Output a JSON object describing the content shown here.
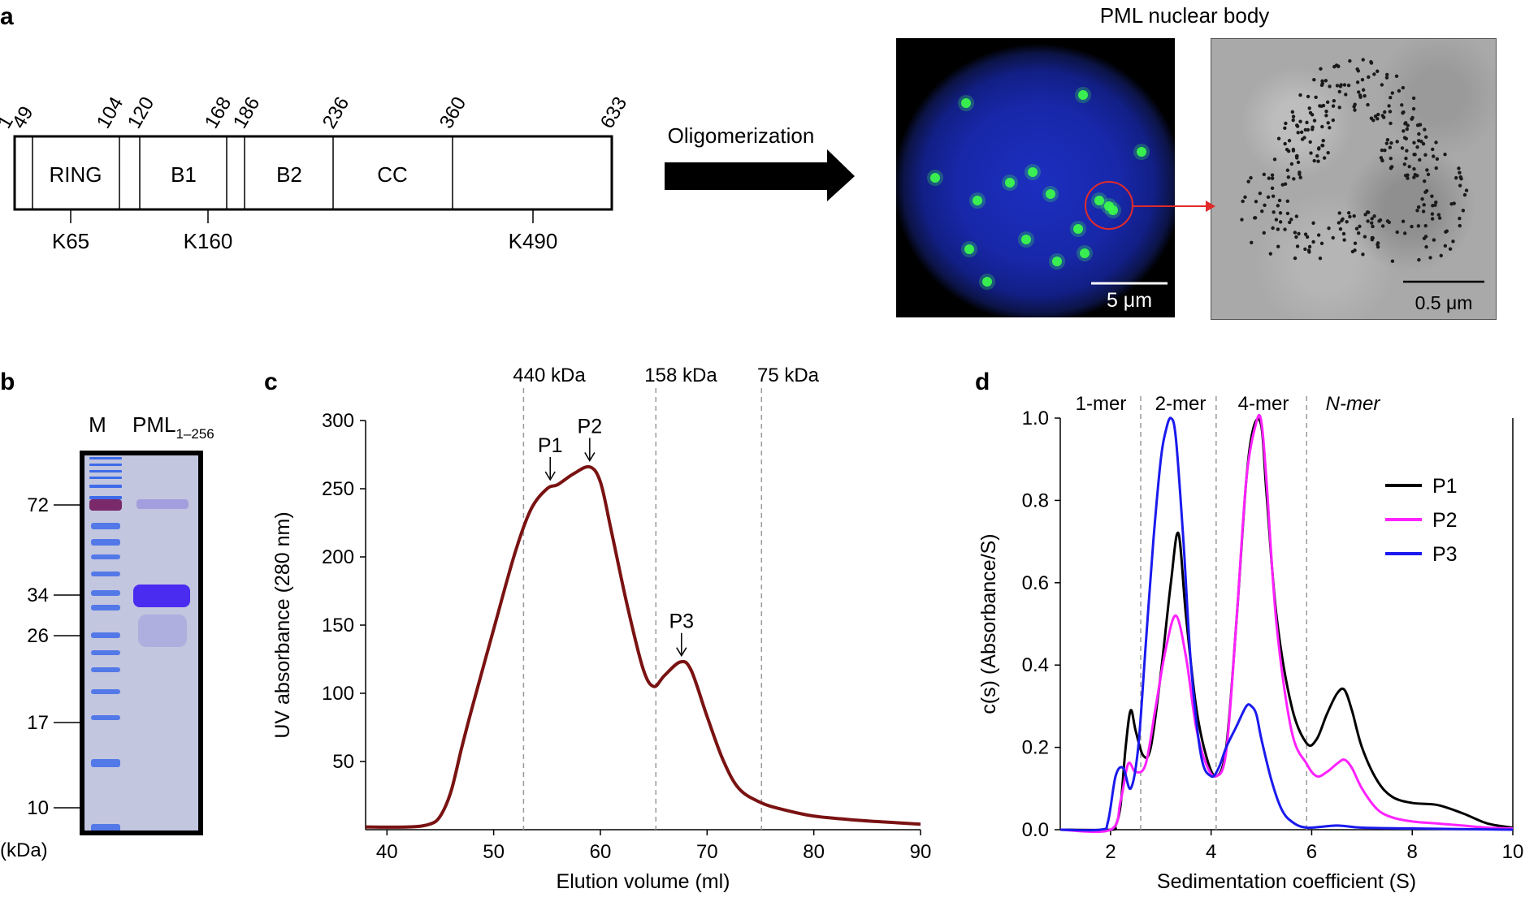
{
  "panel_a": {
    "letter": "a",
    "domain_positions": [
      "1",
      "49",
      "104",
      "120",
      "168",
      "186",
      "236",
      "360",
      "633"
    ],
    "domain_names": [
      "RING",
      "B1",
      "B2",
      "CC"
    ],
    "lysines": [
      "K65",
      "K160",
      "K490"
    ],
    "arrow_label": "Oligomerization",
    "images_title": "PML nuclear body",
    "scalebar_fluor": "5 μm",
    "scalebar_em": "0.5 μm",
    "colors": {
      "fluor_bg": "#1828aa",
      "foci": "#3cff4a",
      "circle": "#e22a2a"
    }
  },
  "panel_b": {
    "letter": "b",
    "lane_m": "M",
    "lane_pml_main": "PML",
    "lane_pml_sub": "1–256",
    "mw_markers": [
      "72",
      "34",
      "26",
      "17",
      "10"
    ],
    "unit": "(kDa)",
    "colors": {
      "gel": "#c2c6df",
      "band": "#4a2cf0",
      "marker": "#3f6bea",
      "marker_72": "#7a2a6a"
    }
  },
  "panel_c": {
    "letter": "c",
    "mw_labels": [
      "440 kDa",
      "158  kDa",
      "75  kDa"
    ],
    "peak_labels": [
      "P1",
      "P2",
      "P3"
    ]
  },
  "panel_d": {
    "letter": "d",
    "region_labels": [
      "1-mer",
      "2-mer",
      "4-mer",
      "N-mer"
    ]
  },
  "chart_data": [
    {
      "type": "line",
      "title": "",
      "xlabel": "Elution volume (ml)",
      "ylabel": "UV absorbance (280 nm)",
      "xlim": [
        38,
        90
      ],
      "ylim": [
        0,
        300
      ],
      "xticks": [
        40,
        50,
        60,
        70,
        80,
        90
      ],
      "yticks": [
        50,
        100,
        150,
        200,
        250,
        300
      ],
      "vlines": [
        52.8,
        65.2,
        75.1
      ],
      "grid": false,
      "series": [
        {
          "color": "#7a1212",
          "x": [
            38,
            42,
            44,
            45,
            46,
            47,
            48,
            50,
            52,
            53.5,
            55,
            56,
            57.5,
            59,
            60,
            61,
            62.5,
            64,
            65,
            66,
            67.5,
            68.5,
            70,
            71.5,
            73,
            75,
            77,
            80,
            84,
            88,
            90
          ],
          "y": [
            2,
            2,
            4,
            10,
            28,
            60,
            90,
            147,
            203,
            235,
            250,
            253,
            261,
            266,
            255,
            220,
            165,
            118,
            105,
            113,
            123,
            117,
            83,
            51,
            30,
            20,
            15,
            10,
            7,
            5,
            4
          ]
        }
      ],
      "annotations": [
        {
          "text": "P1",
          "x": 55.3,
          "y": 253
        },
        {
          "text": "P2",
          "x": 59,
          "y": 267
        },
        {
          "text": "P3",
          "x": 67.6,
          "y": 124
        }
      ]
    },
    {
      "type": "line",
      "title": "",
      "xlabel": "Sedimentation coefficient (S)",
      "ylabel": "c(s) (Absorbance/S)",
      "xlim": [
        1,
        10
      ],
      "ylim": [
        0,
        1.0
      ],
      "xticks": [
        2,
        4,
        6,
        8,
        10
      ],
      "yticks": [
        0.0,
        0.2,
        0.4,
        0.6,
        0.8,
        1.0
      ],
      "vlines": [
        2.6,
        4.1,
        5.9
      ],
      "grid": false,
      "legend": "right",
      "series": [
        {
          "name": "P1",
          "color": "#000000",
          "x": [
            1,
            2.0,
            2.1,
            2.2,
            2.3,
            2.4,
            2.5,
            2.65,
            2.8,
            3.0,
            3.2,
            3.35,
            3.5,
            3.7,
            3.9,
            4.1,
            4.3,
            4.5,
            4.7,
            4.85,
            5.0,
            5.1,
            5.3,
            5.6,
            5.9,
            6.1,
            6.3,
            6.5,
            6.65,
            6.8,
            7.0,
            7.3,
            7.6,
            8.0,
            8.5,
            9.0,
            9.5,
            10
          ],
          "y": [
            0,
            0,
            0.01,
            0.06,
            0.2,
            0.29,
            0.24,
            0.18,
            0.2,
            0.38,
            0.6,
            0.72,
            0.52,
            0.3,
            0.18,
            0.13,
            0.2,
            0.5,
            0.85,
            0.98,
            0.98,
            0.82,
            0.52,
            0.3,
            0.21,
            0.22,
            0.28,
            0.33,
            0.34,
            0.29,
            0.2,
            0.12,
            0.08,
            0.065,
            0.06,
            0.04,
            0.015,
            0.005
          ]
        },
        {
          "name": "P2",
          "color": "#ff22ff",
          "x": [
            1,
            2.0,
            2.2,
            2.35,
            2.5,
            2.7,
            2.9,
            3.1,
            3.3,
            3.5,
            3.7,
            3.9,
            4.1,
            4.3,
            4.5,
            4.7,
            4.9,
            5.0,
            5.1,
            5.3,
            5.6,
            5.9,
            6.1,
            6.3,
            6.5,
            6.65,
            6.8,
            7.0,
            7.3,
            7.6,
            8.0,
            8.5,
            9.0,
            9.5,
            10
          ],
          "y": [
            0,
            0,
            0.07,
            0.16,
            0.14,
            0.16,
            0.3,
            0.44,
            0.52,
            0.42,
            0.25,
            0.16,
            0.13,
            0.19,
            0.5,
            0.85,
            0.99,
            0.99,
            0.85,
            0.5,
            0.24,
            0.16,
            0.13,
            0.14,
            0.16,
            0.17,
            0.15,
            0.1,
            0.05,
            0.03,
            0.02,
            0.015,
            0.01,
            0.005,
            0.003
          ]
        },
        {
          "name": "P3",
          "color": "#1a1aee",
          "x": [
            1,
            1.8,
            1.95,
            2.1,
            2.25,
            2.4,
            2.55,
            2.7,
            2.85,
            3.0,
            3.1,
            3.2,
            3.3,
            3.45,
            3.6,
            3.8,
            4.0,
            4.15,
            4.3,
            4.5,
            4.7,
            4.8,
            4.9,
            5.0,
            5.2,
            5.4,
            5.6,
            5.9,
            6.5,
            7.0,
            8.0,
            10
          ],
          "y": [
            0,
            0,
            0.02,
            0.13,
            0.15,
            0.1,
            0.2,
            0.45,
            0.7,
            0.9,
            0.97,
            1.0,
            0.95,
            0.7,
            0.4,
            0.18,
            0.13,
            0.15,
            0.2,
            0.25,
            0.3,
            0.3,
            0.28,
            0.22,
            0.12,
            0.05,
            0.02,
            0.005,
            0.01,
            0.005,
            0.003,
            0.0
          ]
        }
      ]
    }
  ]
}
